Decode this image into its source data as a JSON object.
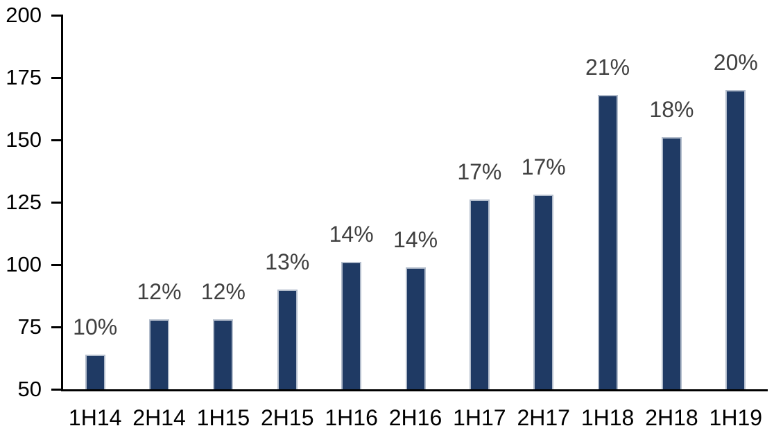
{
  "chart_data": {
    "type": "bar",
    "title": "",
    "xlabel": "",
    "ylabel": "",
    "categories": [
      "1H14",
      "2H14",
      "1H15",
      "2H15",
      "1H16",
      "2H16",
      "1H17",
      "2H17",
      "1H18",
      "2H18",
      "1H19"
    ],
    "values": [
      64,
      78,
      78,
      90,
      101,
      99,
      126,
      128,
      168,
      151,
      170
    ],
    "data_labels": [
      "10%",
      "12%",
      "12%",
      "13%",
      "14%",
      "14%",
      "17%",
      "17%",
      "21%",
      "18%",
      "20%"
    ],
    "ylim": [
      50,
      200
    ],
    "yticks": [
      50,
      75,
      100,
      125,
      150,
      175,
      200
    ],
    "grid": false,
    "legend": "none",
    "colors": {
      "bar_fill": "#1f3a64",
      "bar_border": "#b3bdcc",
      "axis": "#000000",
      "axis_tick_label": "#000000",
      "data_label": "#404040",
      "background": "#ffffff"
    }
  }
}
